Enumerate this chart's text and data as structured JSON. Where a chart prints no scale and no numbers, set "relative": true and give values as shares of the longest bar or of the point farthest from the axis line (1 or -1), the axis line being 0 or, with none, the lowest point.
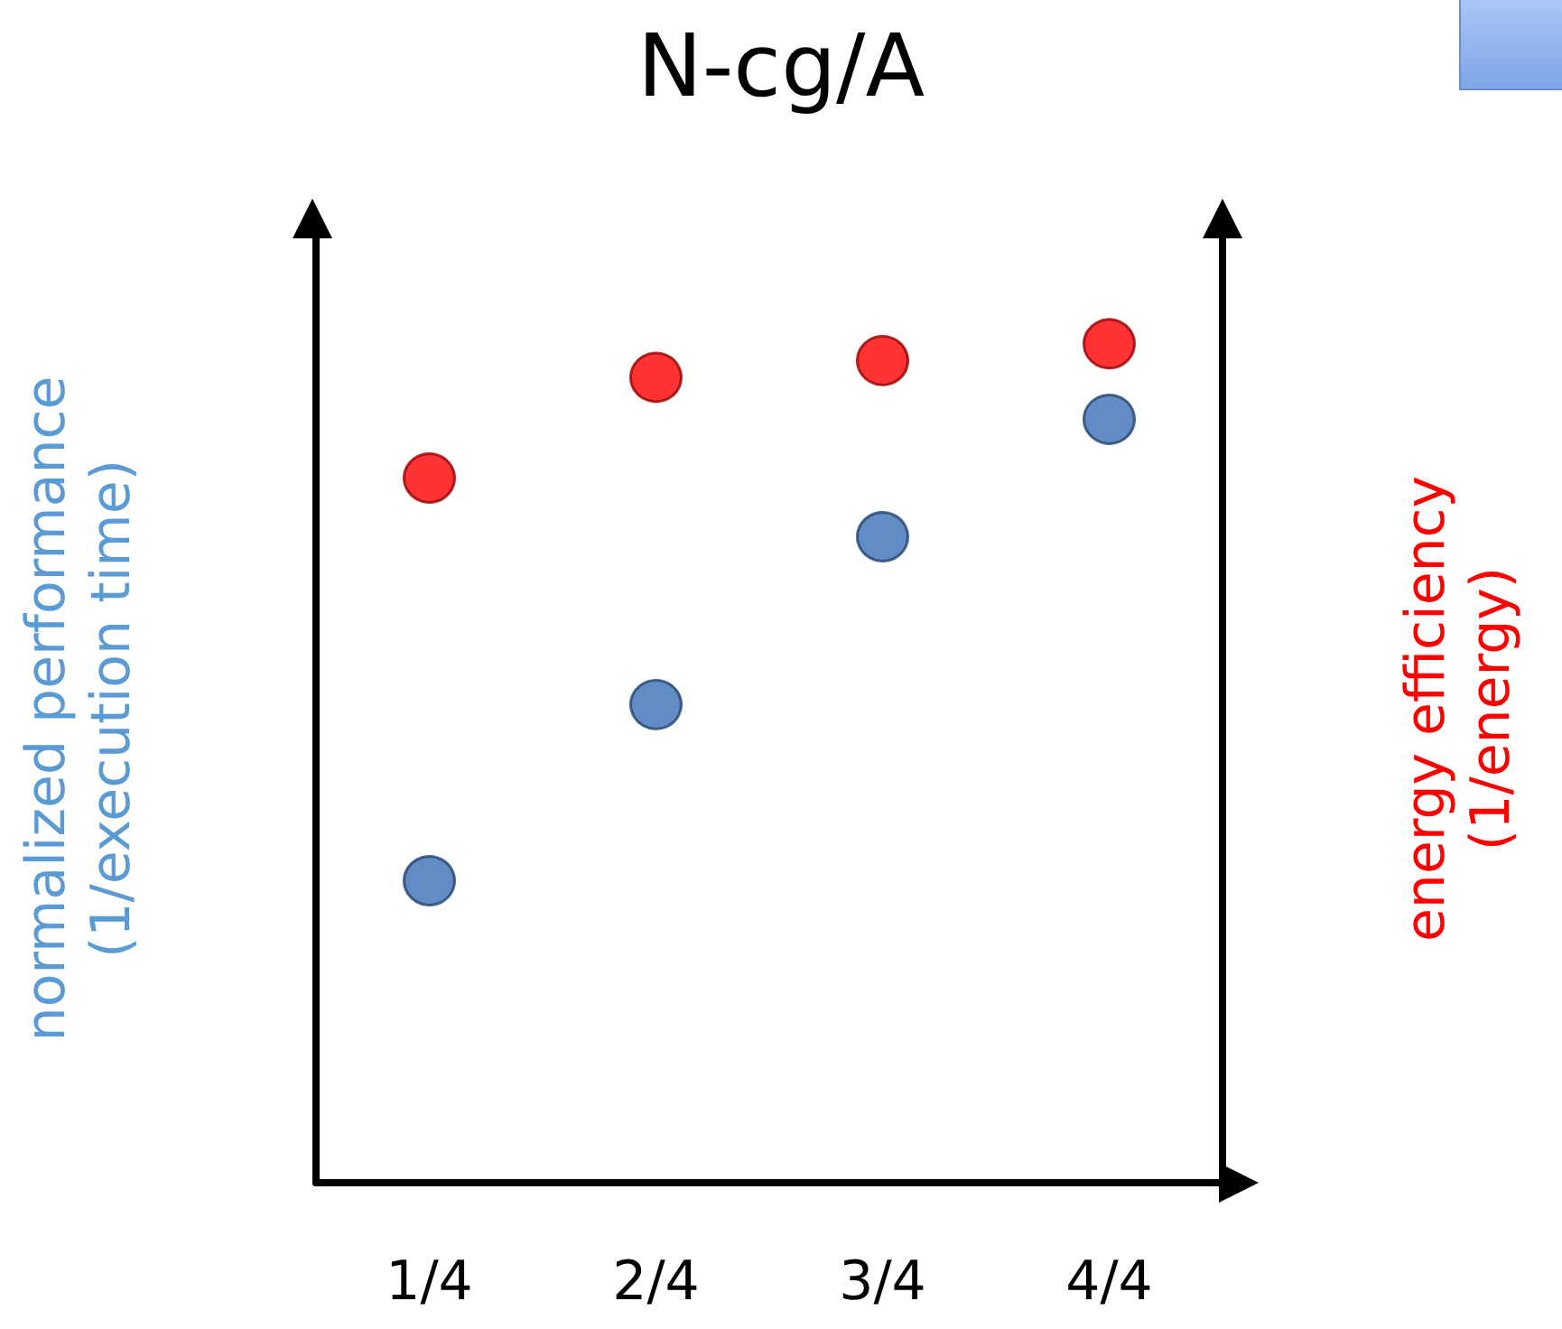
{
  "chart_data": {
    "type": "scatter",
    "title": "N-cg/A",
    "ylabel": "normalized performance\n(1/execution time)",
    "y2label": "energy efficiency\n(1/energy)",
    "categories": [
      "1/4",
      "2/4",
      "3/4",
      "4/4"
    ],
    "relative": true,
    "marker": "circle",
    "series": [
      {
        "color": "#3a6fb8",
        "values": [
          0.36,
          0.57,
          0.77,
          0.91
        ]
      },
      {
        "color": "#ff0000",
        "values": [
          0.84,
          0.96,
          0.98,
          1
        ]
      }
    ]
  }
}
